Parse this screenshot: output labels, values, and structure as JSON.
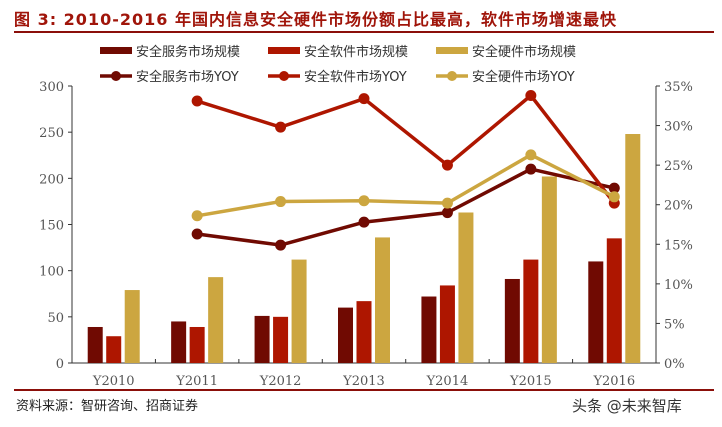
{
  "title": "图 3: 2010-2016 年国内信息安全硬件市场份额占比最高，软件市场增速最快",
  "source": "资料来源：智研咨询、招商证券",
  "watermark": "头条 @未来智库",
  "colors": {
    "service": "#700A02",
    "software": "#AE1600",
    "hardware": "#CCA640",
    "rule": "#8B0F0A"
  },
  "chart_data": {
    "type": "bar+line",
    "title": "2010-2016 年国内信息安全硬件市场份额占比最高，软件市场增速最快",
    "categories": [
      "Y2010",
      "Y2011",
      "Y2012",
      "Y2013",
      "Y2014",
      "Y2015",
      "Y2016"
    ],
    "left_axis": {
      "min": 0,
      "max": 300,
      "ticks": [
        0,
        50,
        100,
        150,
        200,
        250,
        300
      ]
    },
    "right_axis": {
      "min": 0,
      "max": 35,
      "ticks": [
        "0%",
        "5%",
        "10%",
        "15%",
        "20%",
        "25%",
        "30%",
        "35%"
      ]
    },
    "bar_series": [
      {
        "name": "安全服务市场规模",
        "color": "#700A02",
        "values": [
          39,
          45,
          51,
          60,
          72,
          91,
          110
        ]
      },
      {
        "name": "安全软件市场规模",
        "color": "#AE1600",
        "values": [
          29,
          39,
          50,
          67,
          84,
          112,
          135
        ]
      },
      {
        "name": "安全硬件市场规模",
        "color": "#CCA640",
        "values": [
          79,
          93,
          112,
          136,
          163,
          202,
          248
        ]
      }
    ],
    "line_series": [
      {
        "name": "安全服务市场YOY",
        "color": "#700A02",
        "axis": "right",
        "values": [
          null,
          16.3,
          14.9,
          17.8,
          19.0,
          24.5,
          22.1
        ]
      },
      {
        "name": "安全软件市场YOY",
        "color": "#AE1600",
        "axis": "right",
        "values": [
          null,
          33.1,
          29.8,
          33.4,
          25.0,
          33.8,
          20.2
        ]
      },
      {
        "name": "安全硬件市场YOY",
        "color": "#CCA640",
        "axis": "right",
        "values": [
          null,
          18.6,
          20.4,
          20.5,
          20.2,
          26.3,
          21.0
        ]
      }
    ],
    "legend": {
      "position": "top",
      "entries": [
        "安全服务市场规模",
        "安全软件市场规模",
        "安全硬件市场规模",
        "安全服务市场YOY",
        "安全软件市场YOY",
        "安全硬件市场YOY"
      ]
    },
    "grid": false
  }
}
